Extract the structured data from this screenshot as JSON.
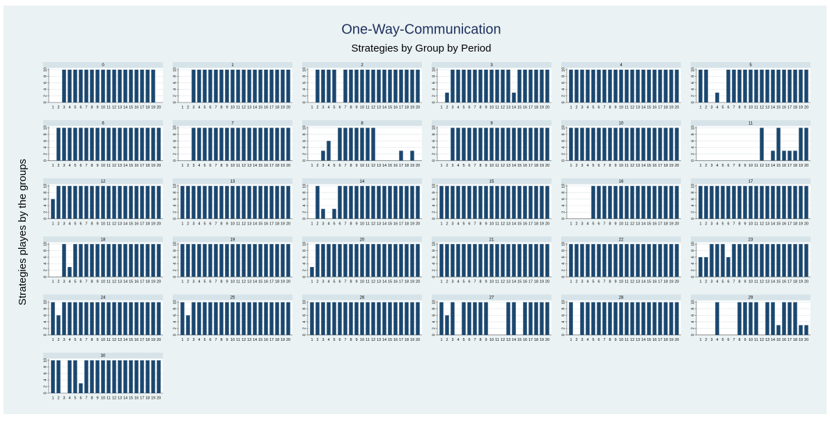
{
  "chart_data": {
    "type": "bar",
    "title": "One-Way-Communication",
    "subtitle": "Strategies by Group by Period",
    "y_label": "Strategies playes by the groups",
    "color": "#1a476f",
    "ylim": [
      0,
      10
    ],
    "yticks": [
      0,
      2,
      4,
      6,
      8,
      10
    ],
    "grid": true,
    "categories": [
      1,
      2,
      3,
      4,
      5,
      6,
      7,
      8,
      9,
      10,
      11,
      12,
      13,
      14,
      15,
      16,
      17,
      18,
      19,
      20
    ],
    "panels": [
      {
        "title": "0",
        "values": [
          0,
          0,
          10,
          10,
          10,
          10,
          10,
          10,
          10,
          10,
          10,
          10,
          10,
          10,
          10,
          10,
          10,
          10,
          10,
          0
        ]
      },
      {
        "title": "1",
        "values": [
          0,
          0,
          10,
          10,
          10,
          10,
          10,
          10,
          10,
          10,
          10,
          10,
          10,
          10,
          10,
          10,
          10,
          10,
          10,
          10
        ]
      },
      {
        "title": "2",
        "values": [
          0,
          10,
          10,
          10,
          10,
          0,
          10,
          10,
          10,
          10,
          10,
          10,
          10,
          10,
          10,
          10,
          10,
          10,
          10,
          10
        ]
      },
      {
        "title": "3",
        "values": [
          0,
          3,
          10,
          10,
          10,
          10,
          10,
          10,
          10,
          10,
          10,
          10,
          10,
          3,
          10,
          10,
          10,
          10,
          10,
          10
        ]
      },
      {
        "title": "4",
        "values": [
          10,
          10,
          10,
          10,
          10,
          10,
          10,
          10,
          10,
          10,
          10,
          10,
          10,
          10,
          10,
          10,
          10,
          10,
          10,
          10
        ]
      },
      {
        "title": "5",
        "values": [
          10,
          10,
          0,
          3,
          0,
          10,
          10,
          10,
          10,
          10,
          10,
          10,
          10,
          10,
          10,
          10,
          10,
          10,
          10,
          10
        ]
      },
      {
        "title": "6",
        "values": [
          0,
          10,
          10,
          10,
          10,
          10,
          10,
          10,
          10,
          10,
          10,
          10,
          10,
          10,
          10,
          10,
          10,
          10,
          10,
          10
        ]
      },
      {
        "title": "7",
        "values": [
          0,
          0,
          10,
          10,
          10,
          10,
          10,
          10,
          10,
          10,
          10,
          10,
          10,
          10,
          10,
          10,
          10,
          10,
          10,
          10
        ]
      },
      {
        "title": "8",
        "values": [
          0,
          0,
          3,
          6,
          0,
          10,
          10,
          10,
          10,
          10,
          10,
          10,
          0,
          0,
          0,
          0,
          3,
          0,
          3,
          0
        ]
      },
      {
        "title": "9",
        "values": [
          0,
          0,
          10,
          10,
          10,
          10,
          10,
          10,
          10,
          10,
          10,
          10,
          10,
          10,
          10,
          10,
          10,
          10,
          10,
          10
        ]
      },
      {
        "title": "10",
        "values": [
          10,
          10,
          10,
          10,
          10,
          10,
          10,
          10,
          10,
          10,
          10,
          10,
          10,
          10,
          10,
          10,
          10,
          10,
          10,
          10
        ]
      },
      {
        "title": "11",
        "values": [
          0,
          0,
          0,
          0,
          0,
          0,
          0,
          0,
          0,
          0,
          0,
          10,
          0,
          3,
          10,
          3,
          3,
          3,
          10,
          10
        ]
      },
      {
        "title": "12",
        "values": [
          6,
          10,
          10,
          10,
          10,
          10,
          10,
          10,
          10,
          10,
          10,
          10,
          10,
          10,
          10,
          10,
          10,
          10,
          10,
          10
        ]
      },
      {
        "title": "13",
        "values": [
          10,
          10,
          10,
          10,
          10,
          10,
          10,
          10,
          10,
          10,
          10,
          10,
          10,
          10,
          10,
          10,
          10,
          10,
          10,
          10
        ]
      },
      {
        "title": "14",
        "values": [
          0,
          10,
          3,
          0,
          3,
          10,
          10,
          10,
          10,
          10,
          10,
          10,
          10,
          10,
          10,
          10,
          10,
          10,
          10,
          10
        ]
      },
      {
        "title": "15",
        "values": [
          10,
          10,
          10,
          10,
          10,
          10,
          10,
          10,
          10,
          10,
          10,
          10,
          10,
          10,
          10,
          10,
          10,
          10,
          10,
          10
        ]
      },
      {
        "title": "16",
        "values": [
          0,
          0,
          0,
          0,
          10,
          10,
          10,
          10,
          10,
          10,
          10,
          10,
          10,
          10,
          10,
          10,
          10,
          10,
          10,
          10
        ]
      },
      {
        "title": "17",
        "values": [
          10,
          10,
          10,
          10,
          10,
          10,
          10,
          10,
          10,
          10,
          10,
          10,
          10,
          10,
          10,
          10,
          10,
          10,
          10,
          10
        ]
      },
      {
        "title": "18",
        "values": [
          0,
          0,
          10,
          3,
          10,
          10,
          10,
          10,
          10,
          10,
          10,
          10,
          10,
          10,
          10,
          10,
          10,
          10,
          10,
          10
        ]
      },
      {
        "title": "19",
        "values": [
          10,
          10,
          10,
          10,
          10,
          10,
          10,
          10,
          10,
          10,
          10,
          10,
          10,
          10,
          10,
          10,
          10,
          10,
          10,
          10
        ]
      },
      {
        "title": "20",
        "values": [
          3,
          10,
          10,
          10,
          10,
          10,
          10,
          10,
          10,
          10,
          10,
          10,
          10,
          10,
          10,
          10,
          10,
          10,
          10,
          10
        ]
      },
      {
        "title": "21",
        "values": [
          10,
          10,
          10,
          10,
          10,
          10,
          10,
          10,
          10,
          10,
          10,
          10,
          10,
          10,
          10,
          10,
          10,
          10,
          10,
          10
        ]
      },
      {
        "title": "22",
        "values": [
          10,
          10,
          10,
          10,
          10,
          10,
          10,
          10,
          10,
          10,
          10,
          10,
          10,
          10,
          10,
          10,
          10,
          10,
          10,
          10
        ]
      },
      {
        "title": "23",
        "values": [
          6,
          6,
          10,
          10,
          10,
          6,
          10,
          10,
          10,
          10,
          10,
          10,
          10,
          10,
          10,
          10,
          10,
          10,
          10,
          10
        ]
      },
      {
        "title": "24",
        "values": [
          10,
          6,
          10,
          10,
          10,
          10,
          10,
          10,
          10,
          10,
          10,
          10,
          10,
          10,
          10,
          10,
          10,
          10,
          10,
          10
        ]
      },
      {
        "title": "25",
        "values": [
          10,
          6,
          10,
          10,
          10,
          10,
          10,
          10,
          10,
          10,
          10,
          10,
          10,
          10,
          10,
          10,
          10,
          10,
          10,
          10
        ]
      },
      {
        "title": "26",
        "values": [
          10,
          10,
          10,
          10,
          10,
          10,
          10,
          10,
          10,
          10,
          10,
          10,
          10,
          10,
          10,
          10,
          10,
          10,
          10,
          10
        ]
      },
      {
        "title": "27",
        "values": [
          10,
          6,
          10,
          0,
          10,
          10,
          10,
          10,
          10,
          0,
          0,
          0,
          10,
          10,
          0,
          10,
          10,
          10,
          10,
          10
        ]
      },
      {
        "title": "28",
        "values": [
          10,
          0,
          10,
          10,
          10,
          10,
          10,
          10,
          10,
          10,
          10,
          10,
          10,
          10,
          10,
          10,
          10,
          10,
          10,
          10
        ]
      },
      {
        "title": "29",
        "values": [
          0,
          0,
          0,
          10,
          0,
          0,
          0,
          10,
          10,
          10,
          10,
          0,
          10,
          10,
          3,
          10,
          10,
          10,
          3,
          3
        ]
      },
      {
        "title": "30",
        "values": [
          10,
          10,
          0,
          10,
          10,
          3,
          10,
          10,
          10,
          10,
          10,
          10,
          10,
          10,
          10,
          10,
          10,
          10,
          10,
          10
        ]
      }
    ]
  }
}
